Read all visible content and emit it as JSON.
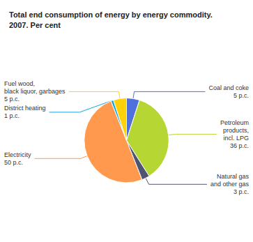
{
  "chart_data": {
    "type": "pie",
    "title": "Total end consumption of energy by energy commodity.\n2007. Per cent",
    "categories": [
      "Coal and coke\n5 p.c.",
      "Petroleum\nproducts,\nincl. LPG\n36 p.c.",
      "Natural gas\nand other gas\n3 p.c.",
      "Electricity\n50 p.c.",
      "District heating\n1 p.c.",
      "Fuel wood,\nblack liquor, garbages\n5 p.c."
    ],
    "values": [
      5,
      36,
      3,
      50,
      1,
      5
    ]
  }
}
